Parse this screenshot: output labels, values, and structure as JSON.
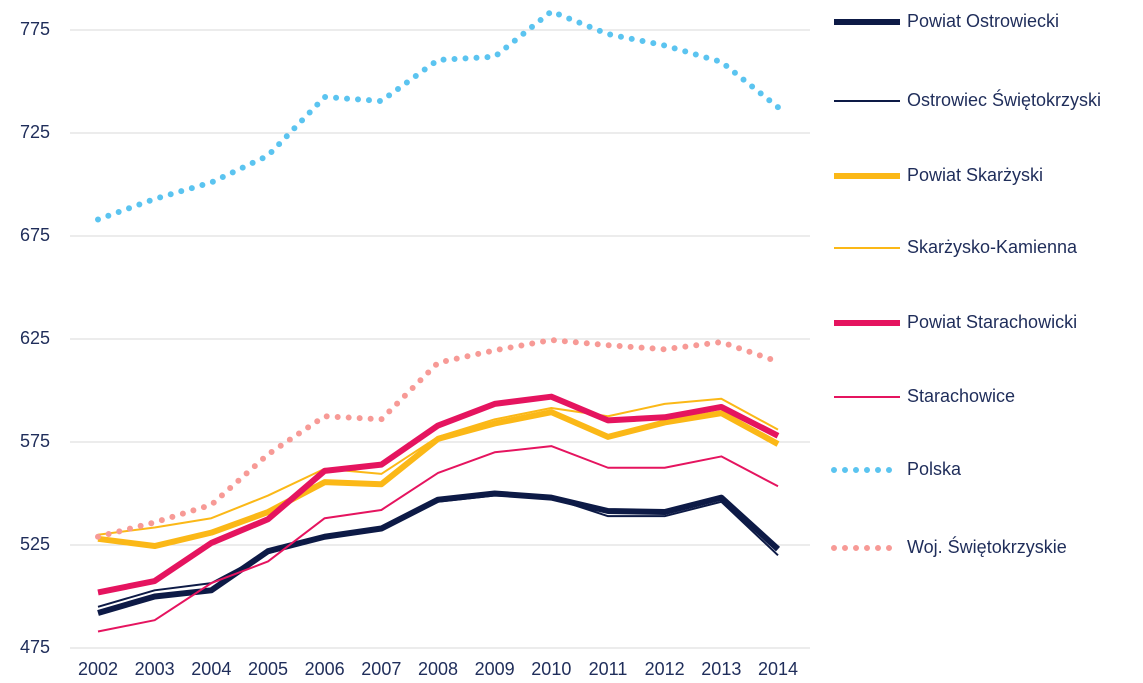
{
  "chart_data": {
    "type": "line",
    "x": [
      2002,
      2003,
      2004,
      2005,
      2006,
      2007,
      2008,
      2009,
      2010,
      2011,
      2012,
      2013,
      2014
    ],
    "xlim": [
      2002,
      2014
    ],
    "xticks": [
      2002,
      2003,
      2004,
      2005,
      2006,
      2007,
      2008,
      2009,
      2010,
      2011,
      2012,
      2013,
      2014
    ],
    "ylim": [
      475,
      785
    ],
    "yticks": [
      475,
      525,
      575,
      625,
      675,
      725,
      775
    ],
    "grid": true,
    "legend": "right",
    "series": [
      {
        "name": "Powiat Ostrowiecki",
        "color": "#0d1a46",
        "line_width": 6,
        "style": "solid",
        "values": [
          492,
          500,
          503,
          522,
          529,
          533,
          547,
          550,
          548,
          541.5,
          541,
          548,
          523
        ]
      },
      {
        "name": "Ostrowiec Świętokrzyski",
        "color": "#0d1a46",
        "line_width": 2,
        "style": "solid",
        "values": [
          495,
          503,
          506.5,
          521,
          529,
          533,
          546,
          549,
          548,
          539,
          539,
          546,
          520
        ]
      },
      {
        "name": "Powiat Skarżyski",
        "color": "#fbb817",
        "line_width": 6,
        "style": "solid",
        "values": [
          528,
          524.5,
          531,
          541,
          555.5,
          554.5,
          576.5,
          584,
          589.5,
          577.5,
          584.5,
          589,
          574
        ]
      },
      {
        "name": "Skarżysko-Kamienna",
        "color": "#fbb817",
        "line_width": 2,
        "style": "solid",
        "values": [
          530,
          533.5,
          538,
          549,
          562,
          559.5,
          577.5,
          586,
          591.5,
          587.5,
          593.5,
          596,
          581
        ]
      },
      {
        "name": "Powiat Starachowicki",
        "color": "#e5145f",
        "line_width": 6,
        "style": "solid",
        "values": [
          502,
          507.5,
          526,
          537.5,
          561,
          564,
          583,
          593.5,
          597,
          585.5,
          587,
          592,
          578
        ]
      },
      {
        "name": "Starachowice",
        "color": "#e5145f",
        "line_width": 2,
        "style": "solid",
        "values": [
          483,
          488.5,
          506.5,
          517,
          538,
          542,
          560,
          570,
          573,
          562.5,
          562.5,
          568,
          553.5
        ]
      },
      {
        "name": "Polska",
        "color": "#5bc4f0",
        "line_width": 6,
        "style": "dotted",
        "values": [
          683,
          693,
          701,
          714,
          742.5,
          740.5,
          760.5,
          762,
          784,
          773,
          767.5,
          759.5,
          737.5
        ]
      },
      {
        "name": "Woj. Świętokrzyskie",
        "color": "#f79a96",
        "line_width": 6,
        "style": "dotted",
        "values": [
          529,
          536,
          544.5,
          569,
          587.5,
          586,
          613.5,
          619.5,
          624.5,
          622,
          620,
          623.5,
          614
        ]
      }
    ]
  }
}
